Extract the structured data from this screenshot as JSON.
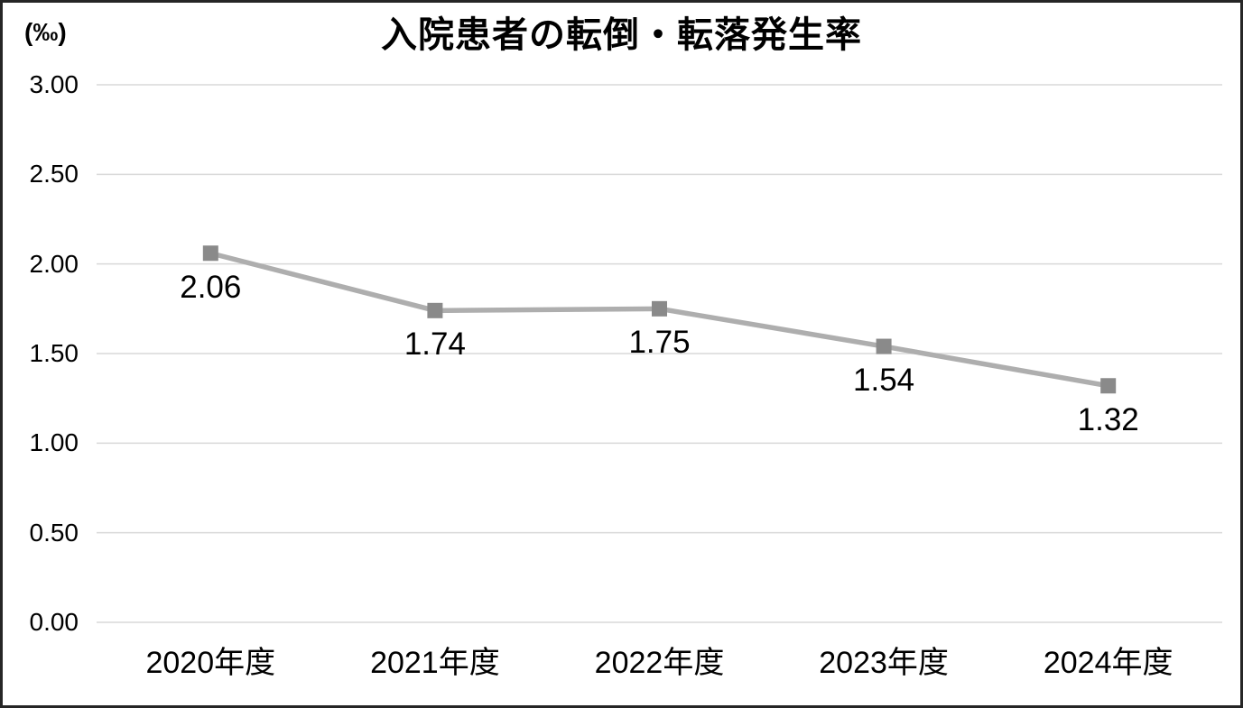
{
  "chart_data": {
    "type": "line",
    "title": "入院患者の転倒・転落発生率",
    "unit_label": "(‰)",
    "categories": [
      "2020年度",
      "2021年度",
      "2022年度",
      "2023年度",
      "2024年度"
    ],
    "values": [
      2.06,
      1.74,
      1.75,
      1.54,
      1.32
    ],
    "data_labels": [
      "2.06",
      "1.74",
      "1.75",
      "1.54",
      "1.32"
    ],
    "y_ticks": [
      "3.00",
      "2.50",
      "2.00",
      "1.50",
      "1.00",
      "0.50",
      "0.00"
    ],
    "ylim": [
      0.0,
      3.0
    ],
    "xlabel": "",
    "ylabel": "",
    "grid": true,
    "legend": "none",
    "colors": {
      "line": "#aeaeae",
      "marker": "#8a8a8a",
      "gridline": "#d9d9d9",
      "text": "#000000",
      "frame_border": "#262626",
      "background": "#ffffff"
    }
  }
}
